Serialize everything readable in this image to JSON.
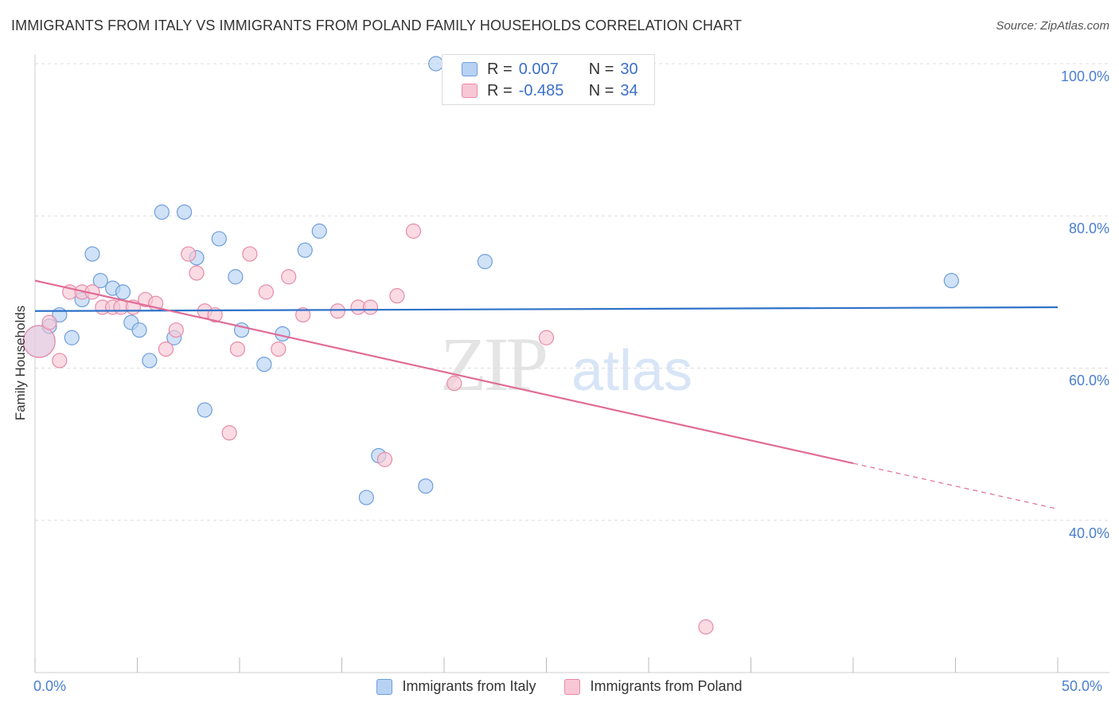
{
  "title": "IMMIGRANTS FROM ITALY VS IMMIGRANTS FROM POLAND FAMILY HOUSEHOLDS CORRELATION CHART",
  "source": "Source: ZipAtlas.com",
  "watermark": {
    "zip": "ZIP",
    "atlas": "atlas"
  },
  "colors": {
    "italy_fill": "#b7d2f3",
    "italy_stroke": "#6f9edb",
    "italy_line": "#2f72c9",
    "poland_fill": "#f8c7d6",
    "poland_stroke": "#e88aa7",
    "poland_line": "#e06c96",
    "grid": "#dddddd",
    "tick_label": "#4a7fd0"
  },
  "legend": {
    "italy": {
      "r_label": "R =",
      "r_value": "0.007",
      "n_label": "N =",
      "n_value": "30"
    },
    "poland": {
      "r_label": "R =",
      "r_value": "-0.485",
      "n_label": "N =",
      "n_value": "34"
    }
  },
  "chart_data": {
    "type": "scatter",
    "title": "IMMIGRANTS FROM ITALY VS IMMIGRANTS FROM POLAND FAMILY HOUSEHOLDS CORRELATION CHART",
    "xlabel": "",
    "ylabel": "Family Households",
    "xlim": [
      0,
      50
    ],
    "ylim": [
      20,
      102
    ],
    "x_tick_labels": [
      "0.0%",
      "50.0%"
    ],
    "y_ticks": [
      40,
      60,
      80,
      100
    ],
    "y_tick_labels": [
      "40.0%",
      "60.0%",
      "80.0%",
      "100.0%"
    ],
    "grid": true,
    "legend_position": "bottom",
    "series": [
      {
        "name": "Immigrants from Italy",
        "points": [
          [
            0.2,
            63.5
          ],
          [
            0.7,
            65.5
          ],
          [
            1.2,
            67.0
          ],
          [
            1.8,
            64.0
          ],
          [
            2.3,
            69.0
          ],
          [
            2.8,
            75.0
          ],
          [
            3.2,
            71.5
          ],
          [
            3.8,
            70.5
          ],
          [
            4.3,
            70.0
          ],
          [
            4.7,
            66.0
          ],
          [
            5.1,
            65.0
          ],
          [
            5.6,
            61.0
          ],
          [
            6.2,
            80.5
          ],
          [
            6.8,
            64.0
          ],
          [
            7.3,
            80.5
          ],
          [
            7.9,
            74.5
          ],
          [
            8.3,
            54.5
          ],
          [
            9.0,
            77.0
          ],
          [
            9.8,
            72.0
          ],
          [
            10.1,
            65.0
          ],
          [
            11.2,
            60.5
          ],
          [
            12.1,
            64.5
          ],
          [
            13.2,
            75.5
          ],
          [
            13.9,
            78.0
          ],
          [
            16.2,
            43.0
          ],
          [
            16.8,
            48.5
          ],
          [
            19.1,
            44.5
          ],
          [
            19.6,
            100.0
          ],
          [
            22.0,
            74.0
          ],
          [
            44.8,
            71.5
          ]
        ],
        "trend": {
          "x": [
            0,
            50
          ],
          "y": [
            67.5,
            68.0
          ]
        }
      },
      {
        "name": "Immigrants from Poland",
        "points": [
          [
            0.2,
            63.5
          ],
          [
            0.7,
            66.0
          ],
          [
            1.2,
            61.0
          ],
          [
            1.7,
            70.0
          ],
          [
            2.3,
            70.0
          ],
          [
            2.8,
            70.0
          ],
          [
            3.3,
            68.0
          ],
          [
            3.8,
            68.0
          ],
          [
            4.2,
            68.0
          ],
          [
            4.8,
            68.0
          ],
          [
            5.4,
            69.0
          ],
          [
            5.9,
            68.5
          ],
          [
            6.4,
            62.5
          ],
          [
            6.9,
            65.0
          ],
          [
            7.5,
            75.0
          ],
          [
            7.9,
            72.5
          ],
          [
            8.3,
            67.5
          ],
          [
            8.8,
            67.0
          ],
          [
            9.5,
            51.5
          ],
          [
            9.9,
            62.5
          ],
          [
            10.5,
            75.0
          ],
          [
            11.3,
            70.0
          ],
          [
            11.9,
            62.5
          ],
          [
            12.4,
            72.0
          ],
          [
            13.1,
            67.0
          ],
          [
            14.8,
            67.5
          ],
          [
            15.8,
            68.0
          ],
          [
            16.4,
            68.0
          ],
          [
            17.1,
            48.0
          ],
          [
            17.7,
            69.5
          ],
          [
            18.5,
            78.0
          ],
          [
            20.5,
            58.0
          ],
          [
            25.0,
            64.0
          ],
          [
            32.8,
            26.0
          ]
        ],
        "trend": {
          "x": [
            0,
            40
          ],
          "y": [
            71.5,
            47.5
          ],
          "dashed_extension": {
            "x": [
              40,
              50
            ],
            "y": [
              47.5,
              41.5
            ]
          }
        }
      }
    ]
  },
  "bottom_legend": {
    "italy_label": "Immigrants from Italy",
    "poland_label": "Immigrants from Poland"
  }
}
